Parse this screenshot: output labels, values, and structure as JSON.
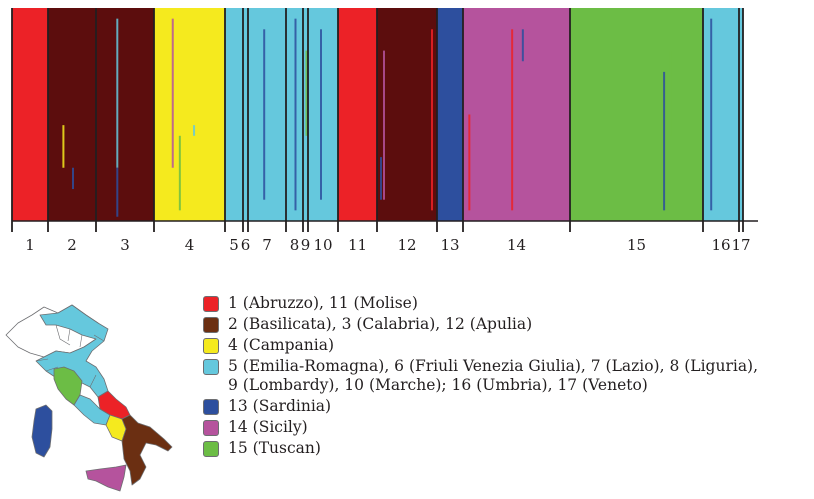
{
  "chart_data": {
    "type": "bar",
    "description_free": true,
    "groups": [
      {
        "label": "1",
        "color": "#ec2227",
        "width": 36
      },
      {
        "label": "2",
        "color": "#5c0d0d",
        "width": 48
      },
      {
        "label": "3",
        "color": "#5c0d0d",
        "width": 58
      },
      {
        "label": "4",
        "color": "#f5ea1e",
        "width": 71
      },
      {
        "label": "5",
        "color": "#65c8dd",
        "width": 18
      },
      {
        "label": "6",
        "color": "#65c8dd",
        "width": 5
      },
      {
        "label": "7",
        "color": "#65c8dd",
        "width": 38
      },
      {
        "label": "8",
        "color": "#65c8dd",
        "width": 17
      },
      {
        "label": "9",
        "color": "#65c8dd",
        "width": 5
      },
      {
        "label": "10",
        "color": "#65c8dd",
        "width": 30
      },
      {
        "label": "11",
        "color": "#ec2227",
        "width": 39
      },
      {
        "label": "12",
        "color": "#5c0d0d",
        "width": 60
      },
      {
        "label": "13",
        "color": "#2d4f9e",
        "width": 26
      },
      {
        "label": "14",
        "color": "#b5539d",
        "width": 107
      },
      {
        "label": "15",
        "color": "#6cbd45",
        "width": 133
      },
      {
        "label": "16",
        "color": "#65c8dd",
        "width": 36
      },
      {
        "label": "17",
        "color": "#65c8dd",
        "width": 4
      }
    ],
    "xlabel": "",
    "ylabel": ""
  },
  "legend": [
    {
      "label": "1 (Abruzzo), 11 (Molise)",
      "color": "#ec2227"
    },
    {
      "label": "2 (Basilicata), 3 (Calabria), 12 (Apulia)",
      "color": "#6b2f12"
    },
    {
      "label": "4 (Campania)",
      "color": "#f5ea1e"
    },
    {
      "label": "5 (Emilia-Romagna), 6 (Friuli Venezia Giulia), 7 (Lazio), 8 (Liguria),\n9 (Lombardy), 10 (Marche); 16 (Umbria), 17 (Veneto)",
      "color": "#65c8dd"
    },
    {
      "label": "13 (Sardinia)",
      "color": "#2d4f9e"
    },
    {
      "label": "14 (Sicily)",
      "color": "#b5539d"
    },
    {
      "label": "15 (Tuscan)",
      "color": "#6cbd45"
    }
  ],
  "map_colors": {
    "north_white": "#ffffff",
    "central_north": "#65c8dd",
    "tuscany": "#6cbd45",
    "abruzzo_molise": "#ec2227",
    "campania": "#f5ea1e",
    "south": "#6b2f12",
    "sardinia": "#2d4f9e",
    "sicily": "#b5539d",
    "border": "#6d6e71"
  }
}
